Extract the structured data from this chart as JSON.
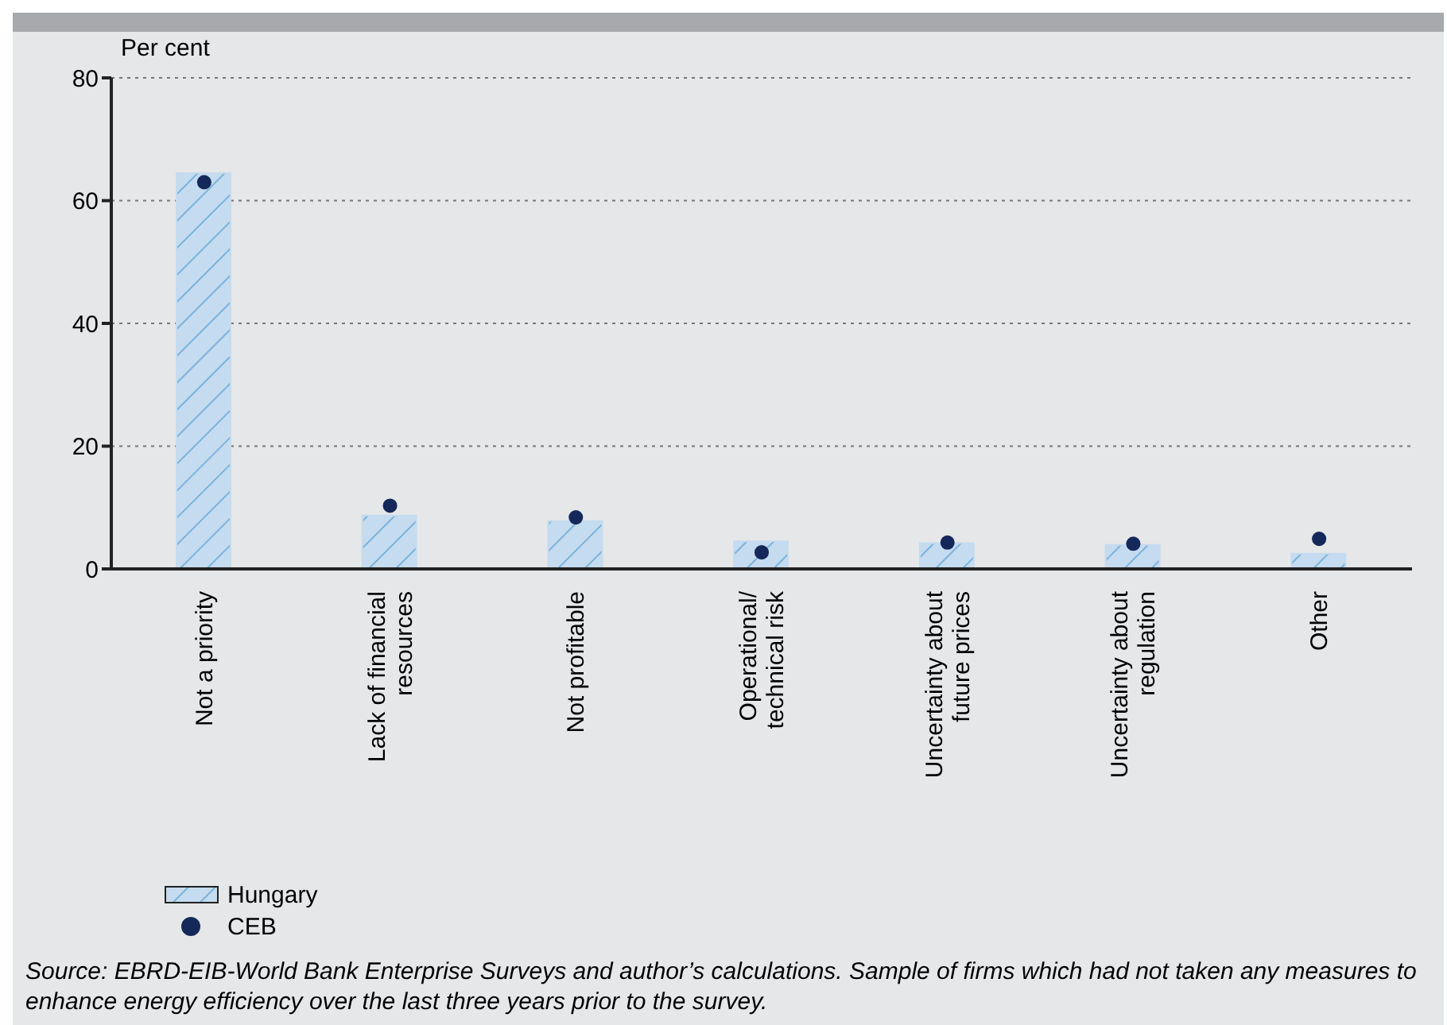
{
  "chart_data": {
    "type": "bar",
    "ylabel": "Per cent",
    "categories": [
      "Not a priority",
      "Lack of financial resources",
      "Not profitable",
      "Operational/ technical risk",
      "Uncertainty about future prices",
      "Uncertainty about regulation",
      "Other"
    ],
    "series": [
      {
        "name": "Hungary",
        "color": "#c5dbef",
        "values": [
          64.5,
          8.7,
          7.8,
          4.5,
          4.2,
          3.9,
          2.5
        ]
      },
      {
        "name": "CEB",
        "type": "scatter",
        "color": "#14285a",
        "values": [
          63,
          10.3,
          8.4,
          2.7,
          4.3,
          4.1,
          4.9
        ]
      }
    ],
    "ylim": [
      0,
      80
    ],
    "yticks": [
      0,
      20,
      40,
      60,
      80
    ],
    "grid": "y",
    "legend": "bottom left",
    "marker": "circle",
    "annotations": [
      "Source: EBRD-EIB-World Bank Enterprise Surveys and author’s calculations. Sample of firms which had not taken any measures to enhance energy efficiency over the last three years prior to the survey."
    ]
  }
}
